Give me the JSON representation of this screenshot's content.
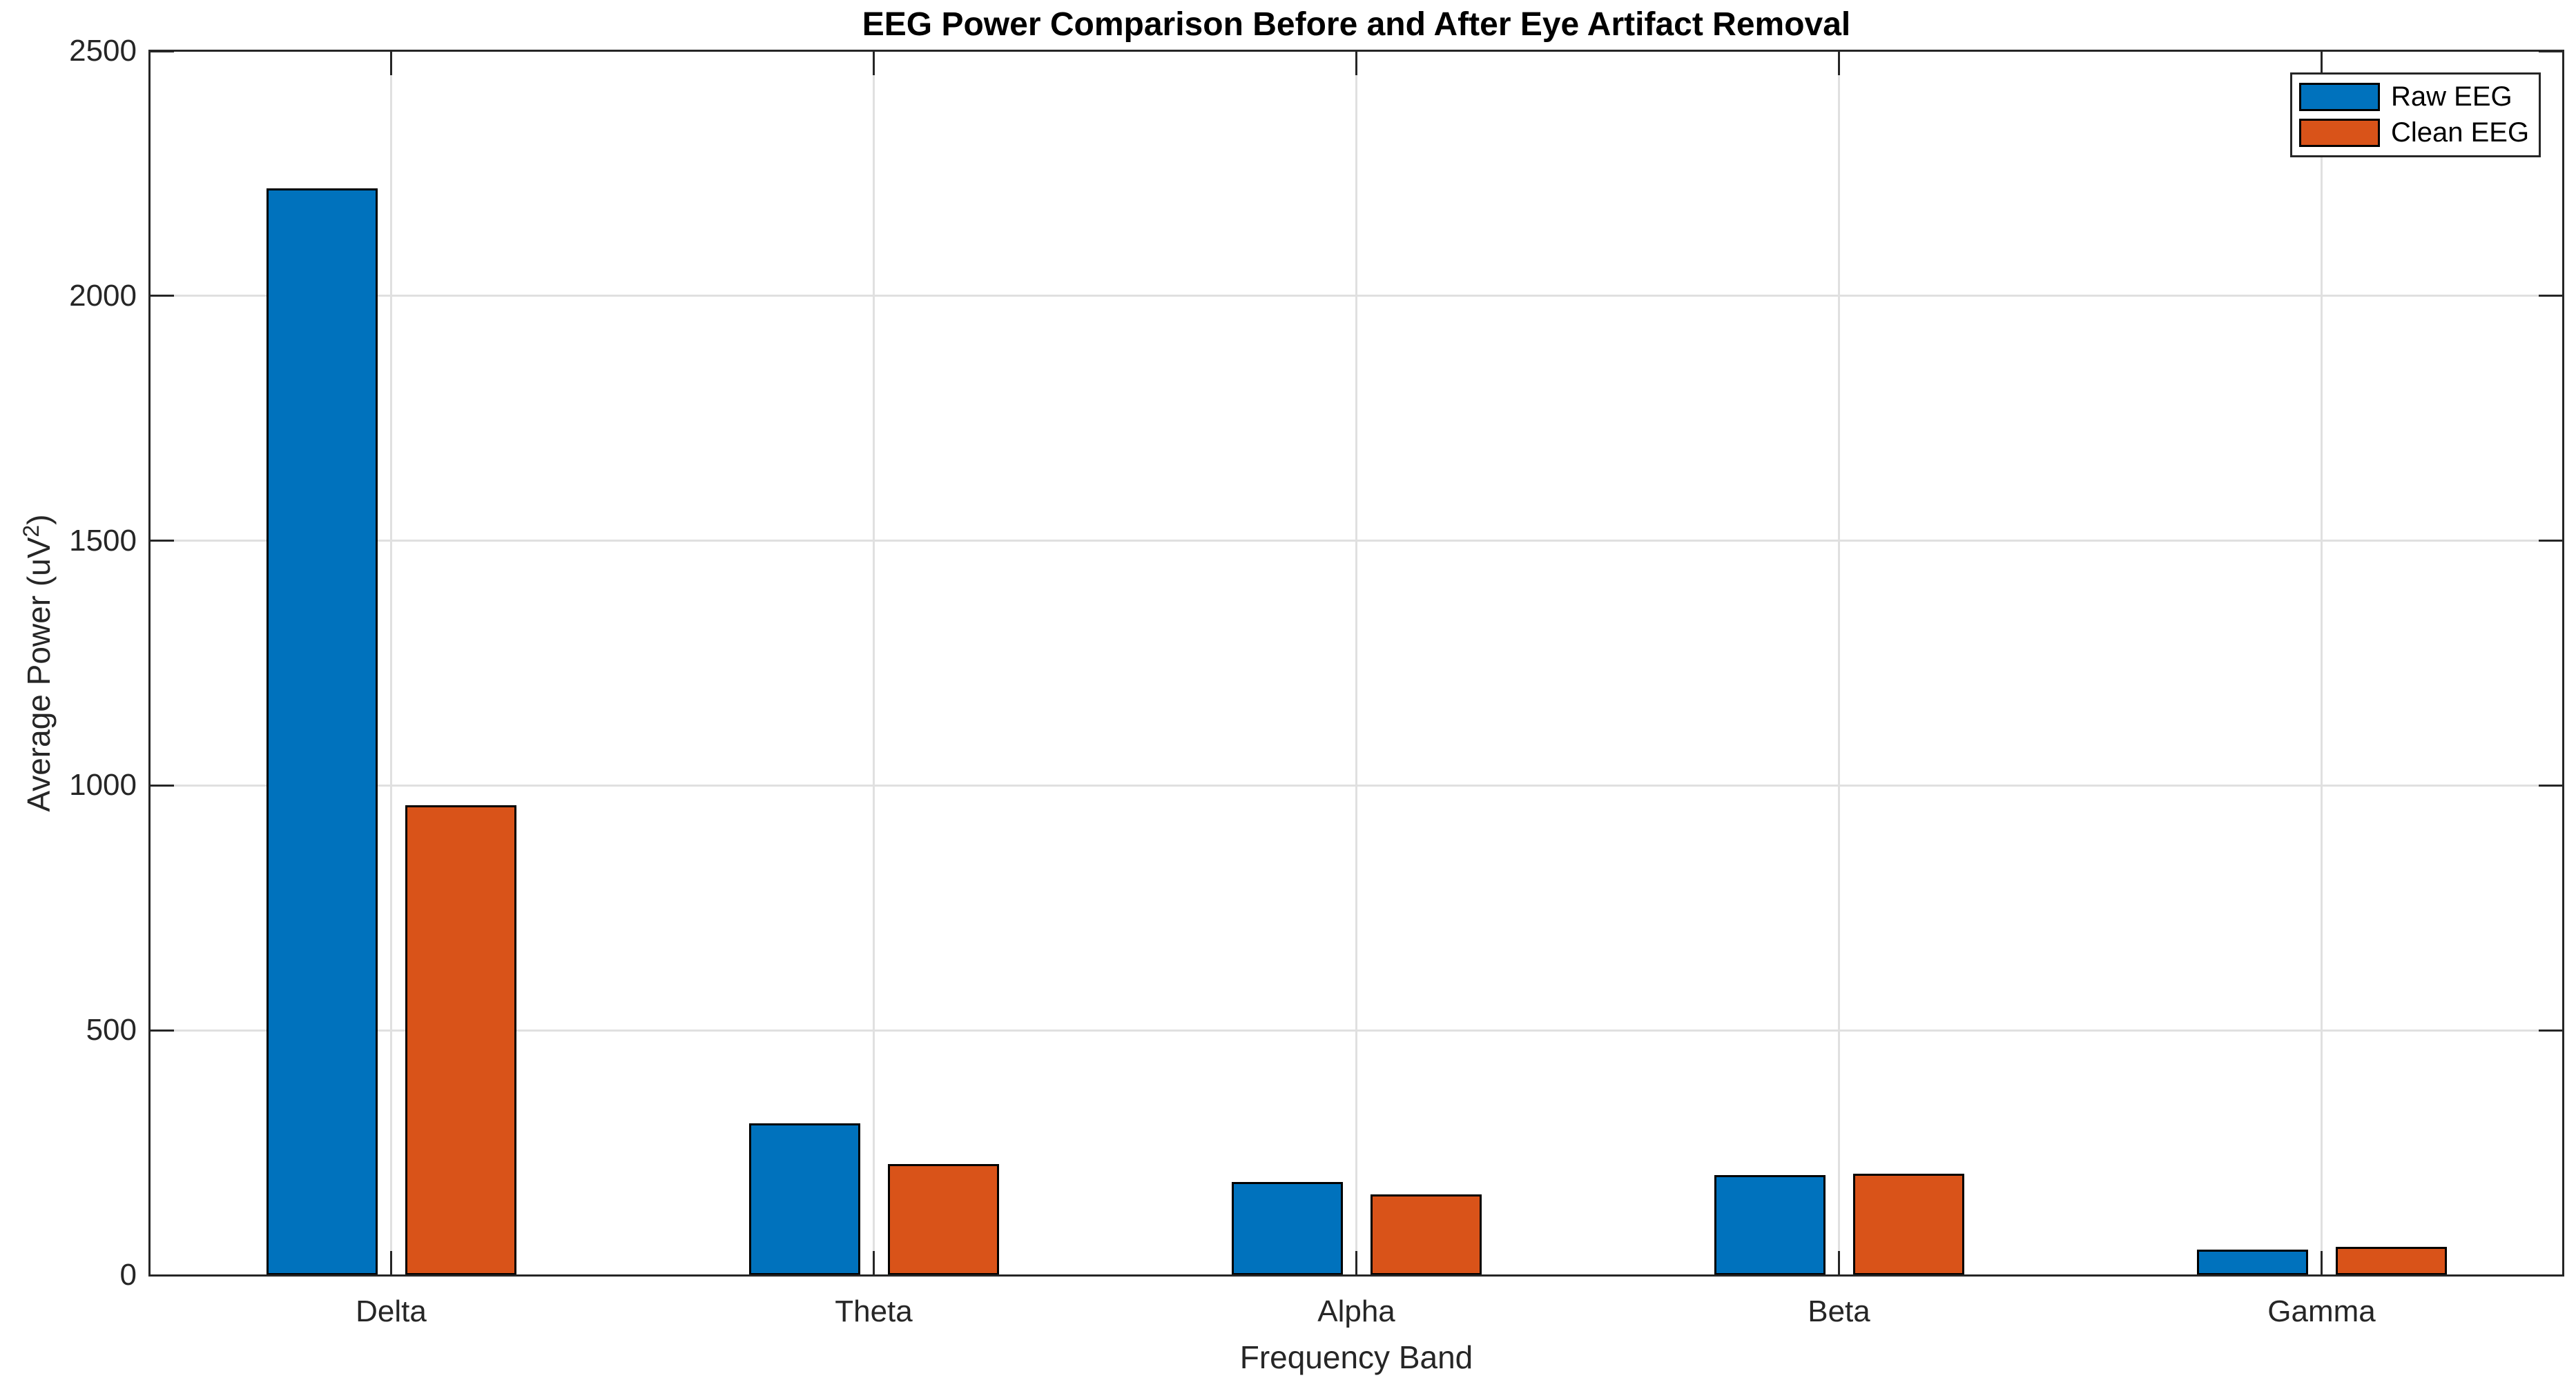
{
  "figure": {
    "title": "EEG Power Comparison Before and After Eye Artifact Removal",
    "xlabel": "Frequency Band",
    "ylabel": {
      "prefix": "Average Power (uV",
      "sup": "2",
      "suffix": ")"
    }
  },
  "chart_data": {
    "type": "bar",
    "title": "EEG Power Comparison Before and After Eye Artifact Removal",
    "xlabel": "Frequency Band",
    "ylabel": "Average Power (uV^2)",
    "categories": [
      "Delta",
      "Theta",
      "Alpha",
      "Beta",
      "Gamma"
    ],
    "series": [
      {
        "name": "Raw EEG",
        "color": "#0072BD",
        "values": [
          2220,
          310,
          190,
          204,
          52
        ]
      },
      {
        "name": "Clean EEG",
        "color": "#D95319",
        "values": [
          960,
          227,
          165,
          207,
          58
        ]
      }
    ],
    "ylim": [
      0,
      2500
    ],
    "yticks": [
      0,
      500,
      1000,
      1500,
      2000,
      2500
    ],
    "grid": true,
    "box": true,
    "legend_position": "top-right",
    "bar_edge_color": "#000000",
    "axis_color": "#262626",
    "grid_color": "#E0E0E0",
    "background_color": "#FFFFFF"
  }
}
